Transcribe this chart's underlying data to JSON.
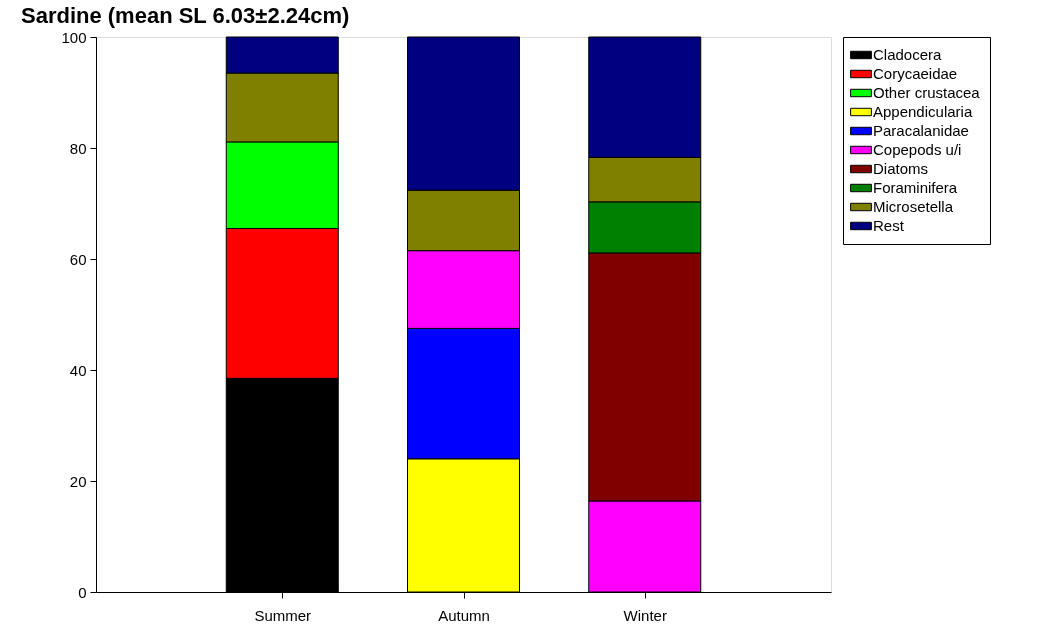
{
  "chart_data": {
    "type": "bar",
    "title": "Sardine (mean SL 6.03±2.24cm)",
    "stacked": true,
    "categories": [
      "Summer",
      "Autumn",
      "Winter"
    ],
    "ylim": [
      0,
      100
    ],
    "yticks": [
      0,
      20,
      40,
      60,
      80,
      100
    ],
    "grid": false,
    "legend": "right",
    "series": [
      {
        "name": "Cladocera",
        "color": "#000000",
        "values": [
          38.5,
          null,
          null
        ]
      },
      {
        "name": "Corycaeidae",
        "color": "#ff0000",
        "values": [
          27.0,
          null,
          null
        ]
      },
      {
        "name": "Other crustacea",
        "color": "#00ff00",
        "values": [
          15.6,
          null,
          null
        ]
      },
      {
        "name": "Appendicularia",
        "color": "#ffff00",
        "values": [
          null,
          24.0,
          null
        ]
      },
      {
        "name": "Paracalanidae",
        "color": "#0000ff",
        "values": [
          null,
          23.5,
          null
        ]
      },
      {
        "name": "Copepods u/i",
        "color": "#ff00ff",
        "values": [
          null,
          14.0,
          16.4
        ]
      },
      {
        "name": "Diatoms",
        "color": "#800000",
        "values": [
          null,
          null,
          44.7
        ]
      },
      {
        "name": "Foraminifera",
        "color": "#008000",
        "values": [
          null,
          null,
          9.2
        ]
      },
      {
        "name": "Microsetella",
        "color": "#808000",
        "values": [
          12.4,
          10.9,
          8.0
        ]
      },
      {
        "name": "Rest",
        "color": "#000080",
        "values": [
          6.5,
          27.6,
          21.7
        ]
      }
    ]
  }
}
